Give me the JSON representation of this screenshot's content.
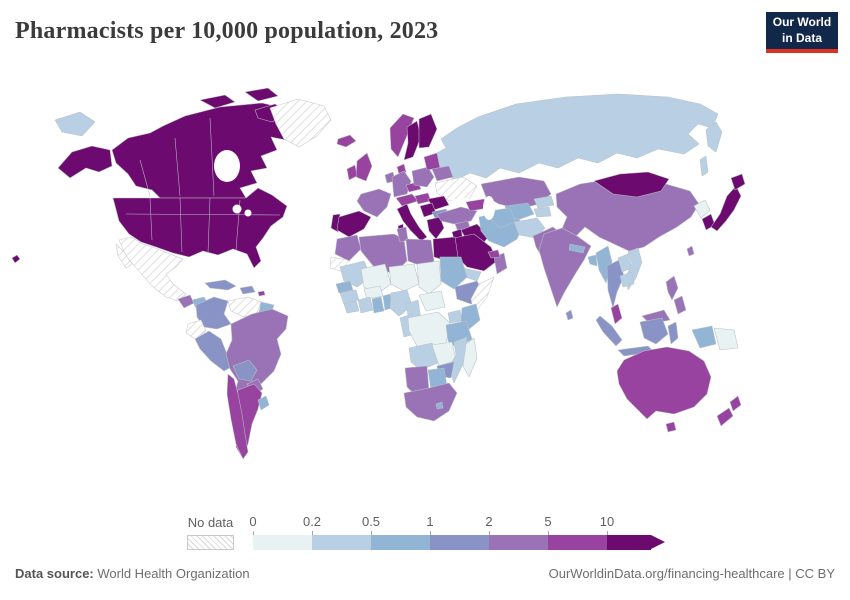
{
  "title": "Pharmacists per 10,000 population, 2023",
  "logo": {
    "line1": "Our World",
    "line2": "in Data",
    "bg": "#12284a",
    "accent": "#dc3224"
  },
  "legend": {
    "no_data_label": "No data",
    "ticks": [
      "0",
      "0.2",
      "0.5",
      "1",
      "2",
      "5",
      "10"
    ],
    "buckets": [
      "0-0.2",
      "0.2-0.5",
      "0.5-1",
      "1-2",
      "2-5",
      "5-10",
      "10+"
    ],
    "colors": [
      "#e9f2f3",
      "#b9d0e4",
      "#92b5d6",
      "#8a93c6",
      "#9a73b6",
      "#97439f",
      "#6d0a6f"
    ],
    "segment_width": 59,
    "arrow_segment_width": 44
  },
  "footer": {
    "source_label": "Data source:",
    "source_value": " World Health Organization",
    "credit": "OurWorldinData.org/financing-healthcare | CC BY"
  },
  "map": {
    "ocean": "#ffffff",
    "countries": {
      "canada": "10+",
      "usa": "10+",
      "hawaii": "10+",
      "greenland": "no-data",
      "mexico": "no-data",
      "guatemala": "2-5",
      "honduras": "0.5-1",
      "nicaragua": "0.5-1",
      "costa-rica": "10+",
      "panama": "2-5",
      "cuba": "1-2",
      "haiti-dr": "1-2",
      "puerto-rico": "5-10",
      "colombia": "1-2",
      "venezuela": "no-data",
      "guyana-suriname": "0.5-1",
      "ecuador": "no-data",
      "peru": "1-2",
      "brazil": "2-5",
      "bolivia": "1-2",
      "paraguay": "2-5",
      "argentina": "5-10",
      "chile": "5-10",
      "uruguay": "0.5-1",
      "iceland": "5-10",
      "norway": "5-10",
      "sweden": "10+",
      "finland": "10+",
      "denmark": "5-10",
      "uk": "5-10",
      "ireland": "5-10",
      "france": "2-5",
      "spain": "10+",
      "portugal": "10+",
      "germany": "2-5",
      "benelux": "2-5",
      "switzerland-austria": "5-10",
      "czech": "5-10",
      "poland": "2-5",
      "italy": "10+",
      "baltics": "5-10",
      "belarus": "2-5",
      "ukraine": "no-data",
      "romania": "10+",
      "hungary": "5-10",
      "serbia": "10+",
      "bulgaria": "1-2",
      "greece": "10+",
      "russia": "0.2-0.5",
      "chukotka": "0.2-0.5",
      "kazakhstan": "2-5",
      "uzbekistan": "0.5-1",
      "turkmenistan": "0.5-1",
      "kyrgyzstan": "0.2-0.5",
      "tajikistan": "0.2-0.5",
      "afghanistan": "0.2-0.5",
      "pakistan": "2-5",
      "india": "2-5",
      "nepal": "0.5-1",
      "bangladesh": "0.5-1",
      "sri-lanka": "1-2",
      "turkey": "2-5",
      "caucasus": "5-10",
      "syria": "2-5",
      "iraq": "10+",
      "iran": "0.5-1",
      "saudi-arabia": "10+",
      "yemen": "0.2-0.5",
      "oman": "2-5",
      "uae-qatar": "5-10",
      "jordan-israel": "10+",
      "egypt": "10+",
      "libya": "2-5",
      "tunisia": "2-5",
      "algeria": "2-5",
      "morocco": "2-5",
      "western-sahara": "no-data",
      "mauritania": "0.2-0.5",
      "mali": "0-0.2",
      "niger": "0-0.2",
      "chad": "0-0.2",
      "sudan": "0.5-1",
      "ethiopia": "1-2",
      "somalia": "no-data",
      "senegal": "0.5-1",
      "guinea": "0.2-0.5",
      "sierra-leone-liberia": "0.2-0.5",
      "ivory-coast": "0.2-0.5",
      "ghana": "0.5-1",
      "burkina-faso": "0-0.2",
      "togo-benin": "0.5-1",
      "nigeria": "0.2-0.5",
      "cameroon": "0.2-0.5",
      "central-african-republic": "0-0.2",
      "drc": "0-0.2",
      "gabon-congo": "0.2-0.5",
      "uganda": "0.2-0.5",
      "kenya": "0.5-1",
      "tanzania": "0.5-1",
      "angola": "0.2-0.5",
      "zambia": "0-0.2",
      "mozambique": "0.2-0.5",
      "zimbabwe": "1-2",
      "namibia": "2-5",
      "botswana": "0.5-1",
      "south-africa": "2-5",
      "lesotho": "0.5-1",
      "madagascar": "0-0.2",
      "china": "2-5",
      "mongolia": "10+",
      "north-korea": "0-0.2",
      "south-korea": "10+",
      "japan": "10+",
      "taiwan": "2-5",
      "myanmar": "0.5-1",
      "thailand": "1-2",
      "laos": "0.2-0.5",
      "vietnam": "0.2-0.5",
      "cambodia": "0.2-0.5",
      "malaysia-peninsula": "5-10",
      "malaysia-borneo": "2-5",
      "indonesia": "1-2",
      "west-papua": "0.5-1",
      "papua-new-guinea": "0-0.2",
      "philippines": "2-5",
      "australia": "5-10",
      "new-zealand": "5-10"
    }
  }
}
